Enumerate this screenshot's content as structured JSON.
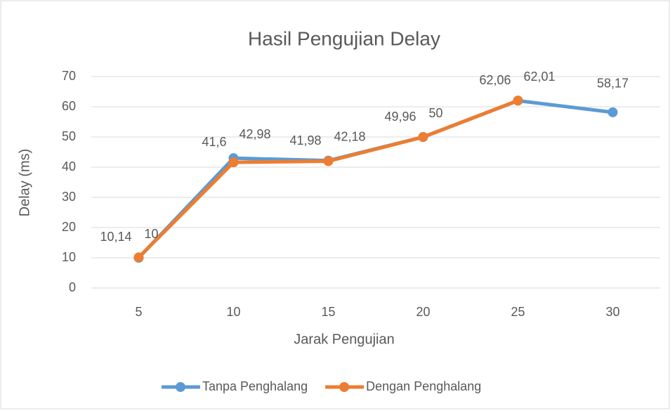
{
  "chart_data": {
    "type": "line",
    "title": "Hasil Pengujian Delay",
    "x_label": "Jarak Pengujian",
    "y_label": "Delay (ms)",
    "categories": [
      "5",
      "10",
      "15",
      "20",
      "25",
      "30"
    ],
    "series": [
      {
        "name": "Tanpa Penghalang",
        "color": "#5b9bd5",
        "values": [
          10,
          42.98,
          42.18,
          50,
          62.01,
          58.17
        ],
        "value_labels": [
          "10",
          "42,98",
          "42,18",
          "50",
          "62,01",
          "58,17"
        ]
      },
      {
        "name": "Dengan Penghalang",
        "color": "#ed7d31",
        "values": [
          10.14,
          41.6,
          41.98,
          49.96,
          62.06,
          null
        ],
        "value_labels": [
          "10,14",
          "41,6",
          "41,98",
          "49,96",
          "62,06",
          null
        ]
      }
    ],
    "ylim": [
      0,
      70
    ],
    "yticks": [
      0,
      10,
      20,
      30,
      40,
      50,
      60,
      70
    ],
    "grid": true,
    "legend": "bottom"
  }
}
